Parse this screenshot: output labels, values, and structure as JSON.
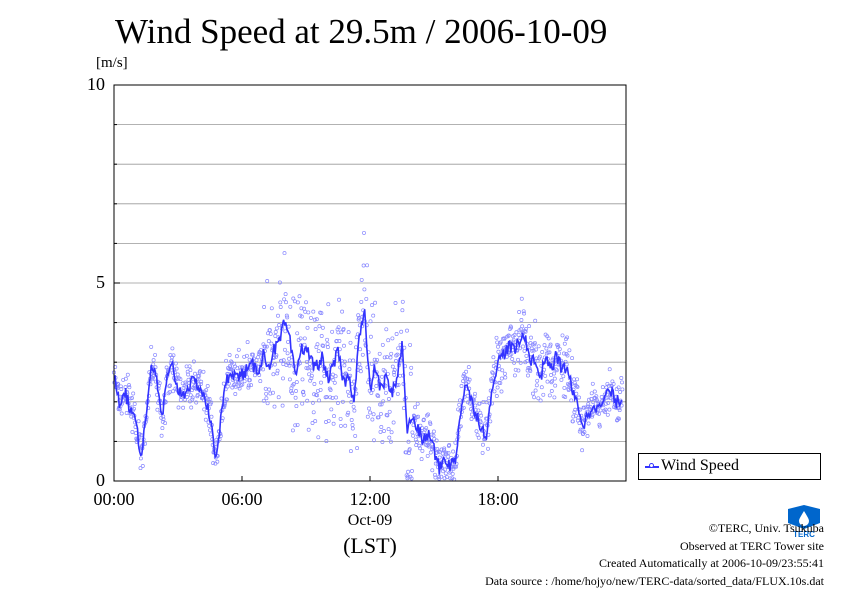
{
  "chart_data": {
    "type": "scatter",
    "title": "Wind Speed at 29.5m / 2006-10-09",
    "ylabel": "[m/s]",
    "ylim": [
      0,
      10
    ],
    "yticks": [
      "0",
      "5",
      "10"
    ],
    "xlim": [
      "00:00",
      "24:00"
    ],
    "xticks": [
      "00:00",
      "06:00",
      "12:00",
      "18:00"
    ],
    "xsublabel": "Oct-09",
    "xlabel": "(LST)",
    "grid": true,
    "legend_position": "bottom-right",
    "series": [
      {
        "name": "Wind Speed",
        "color": "#3333ff",
        "point_color": "#8888ff",
        "x_hours": [
          0,
          0.25,
          0.5,
          0.75,
          1,
          1.25,
          1.5,
          1.75,
          2,
          2.25,
          2.5,
          2.75,
          3,
          3.25,
          3.5,
          3.75,
          4,
          4.25,
          4.5,
          4.75,
          5,
          5.25,
          5.5,
          5.75,
          6,
          6.25,
          6.5,
          6.75,
          7,
          7.25,
          7.5,
          7.75,
          8,
          8.25,
          8.5,
          8.75,
          9,
          9.25,
          9.5,
          9.75,
          10,
          10.25,
          10.5,
          10.75,
          11,
          11.25,
          11.5,
          11.75,
          12,
          12.25,
          12.5,
          12.75,
          13,
          13.25,
          13.5,
          13.75,
          14,
          14.25,
          14.5,
          14.75,
          15,
          15.25,
          15.5,
          15.75,
          16,
          16.25,
          16.5,
          16.75,
          17,
          17.25,
          17.5,
          17.75,
          18,
          18.25,
          18.5,
          18.75,
          19,
          19.25,
          19.5,
          19.75,
          20,
          20.25,
          20.5,
          20.75,
          21,
          21.25,
          21.5,
          21.75,
          22,
          22.25,
          22.5,
          22.75,
          23,
          23.25,
          23.5,
          23.75
        ],
        "mean_values": [
          2.8,
          2.0,
          2.3,
          1.8,
          1.7,
          0.6,
          1.6,
          3.0,
          2.5,
          1.6,
          2.6,
          2.9,
          2.3,
          2.2,
          2.4,
          2.5,
          2.4,
          2.1,
          1.6,
          0.6,
          1.5,
          2.5,
          2.8,
          2.6,
          2.7,
          2.8,
          2.9,
          2.8,
          3.2,
          2.9,
          3.3,
          3.5,
          4.0,
          3.5,
          2.6,
          3.3,
          3.4,
          3.0,
          2.9,
          3.1,
          2.6,
          2.8,
          3.3,
          2.5,
          2.6,
          2.1,
          3.7,
          4.2,
          2.3,
          2.9,
          2.3,
          2.6,
          2.2,
          2.6,
          3.4,
          1.3,
          1.6,
          1.3,
          1.0,
          1.2,
          0.8,
          0.3,
          0.6,
          0.4,
          0.5,
          1.8,
          2.5,
          2.0,
          1.7,
          1.3,
          1.2,
          2.5,
          3.0,
          3.2,
          3.4,
          3.3,
          3.5,
          3.7,
          3.1,
          3.0,
          2.6,
          3.2,
          2.8,
          3.2,
          2.8,
          2.9,
          2.2,
          1.9,
          1.4,
          1.7,
          2.0,
          1.8,
          2.1,
          2.3,
          2.0,
          2.0,
          2.2,
          2.1
        ]
      }
    ]
  },
  "credits": {
    "copyright": "©TERC, Univ. Tsukuba",
    "observed": "Observed at TERC Tower site",
    "created": "Created Automatically at 2006-10-09/23:55:41",
    "source": "Data source : /home/hojyo/new/TERC-data/sorted_data/FLUX.10s.dat"
  },
  "logo": {
    "text": "TERC",
    "color": "#0066cc"
  }
}
